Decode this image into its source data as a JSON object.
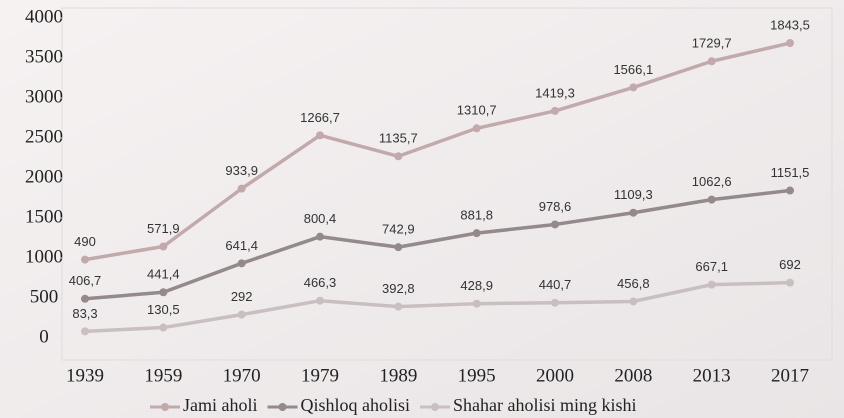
{
  "chart_data": {
    "type": "line",
    "stacked": true,
    "categories": [
      "1939",
      "1959",
      "1970",
      "1979",
      "1989",
      "1995",
      "2000",
      "2008",
      "2013",
      "2017"
    ],
    "series": [
      {
        "name": "Jami aholi",
        "color": "#c2a9ac",
        "values": [
          490,
          571.9,
          933.9,
          1266.7,
          1135.7,
          1310.7,
          1419.3,
          1566.1,
          1729.7,
          1843.5
        ],
        "value_labels": [
          "490",
          "571,9",
          "933,9",
          "1266,7",
          "1135,7",
          "1310,7",
          "1419,3",
          "1566,1",
          "1729,7",
          "1843,5"
        ]
      },
      {
        "name": "Qishloq aholisi",
        "color": "#948a8c",
        "values": [
          406.7,
          441.4,
          641.4,
          800.4,
          742.9,
          881.8,
          978.6,
          1109.3,
          1062.6,
          1151.5
        ],
        "value_labels": [
          "406,7",
          "441,4",
          "641,4",
          "800,4",
          "742,9",
          "881,8",
          "978,6",
          "1109,3",
          "1062,6",
          "1151,5"
        ]
      },
      {
        "name": "Shahar aholisi ming kishi",
        "color": "#c9bfc1",
        "values": [
          83.3,
          130.5,
          292,
          466.3,
          392.8,
          428.9,
          440.7,
          456.8,
          667.1,
          692
        ],
        "value_labels": [
          "83,3",
          "130,5",
          "292",
          "466,3",
          "392,8",
          "428,9",
          "440,7",
          "456,8",
          "667,1",
          "692"
        ]
      }
    ],
    "ylim": [
      0,
      4000
    ],
    "yticks": [
      0,
      500,
      1000,
      1500,
      2000,
      2500,
      3000,
      3500,
      4000
    ],
    "grid": false,
    "legend": "bottom"
  }
}
